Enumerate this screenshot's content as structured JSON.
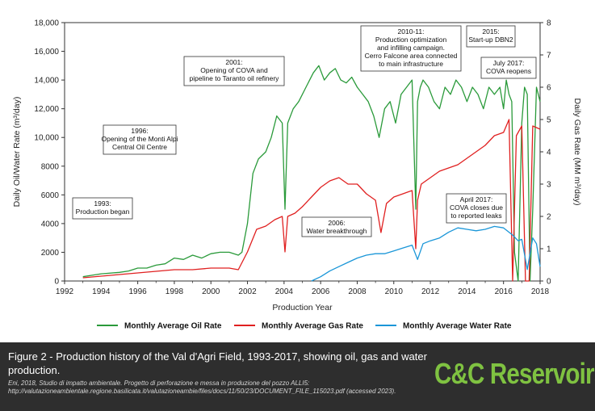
{
  "chart_data": {
    "type": "line",
    "xlabel": "Production Year",
    "ylabel_left": "Daily Oil/Water Rate (m³/day)",
    "ylabel_right": "Daily Gas Rate (MM m³/day)",
    "xlim": [
      1992,
      2018
    ],
    "ylim_left": [
      0,
      18000
    ],
    "ylim_right": [
      0,
      8
    ],
    "x_ticks": [
      "1992",
      "1994",
      "1996",
      "1998",
      "2000",
      "2002",
      "2004",
      "2006",
      "2008",
      "2010",
      "2012",
      "2014",
      "2016",
      "2018"
    ],
    "y_left_ticks": [
      "0",
      "2000",
      "4000",
      "6000",
      "8000",
      "10,000",
      "12,000",
      "14,000",
      "16,000",
      "18,000"
    ],
    "y_right_ticks": [
      "0",
      "1",
      "2",
      "3",
      "4",
      "5",
      "6",
      "7",
      "8"
    ],
    "grid": false,
    "legend_position": "bottom",
    "series": [
      {
        "name": "Monthly Average Oil Rate",
        "axis": "left",
        "color": "#2a9a3a",
        "x": [
          1993.0,
          1993.5,
          1994.0,
          1995.0,
          1995.5,
          1996.0,
          1996.5,
          1997.0,
          1997.5,
          1998.0,
          1998.5,
          1999.0,
          1999.5,
          2000.0,
          2000.5,
          2001.0,
          2001.5,
          2001.7,
          2002.0,
          2002.3,
          2002.6,
          2003.0,
          2003.3,
          2003.6,
          2003.9,
          2004.05,
          2004.2,
          2004.5,
          2004.8,
          2005.2,
          2005.6,
          2005.9,
          2006.2,
          2006.5,
          2006.8,
          2007.1,
          2007.4,
          2007.7,
          2008.0,
          2008.3,
          2008.6,
          2008.9,
          2009.2,
          2009.5,
          2009.8,
          2010.1,
          2010.4,
          2010.7,
          2011.0,
          2011.2,
          2011.3,
          2011.45,
          2011.6,
          2011.9,
          2012.2,
          2012.5,
          2012.8,
          2013.1,
          2013.4,
          2013.7,
          2014.0,
          2014.3,
          2014.6,
          2014.9,
          2015.2,
          2015.5,
          2015.8,
          2016.0,
          2016.15,
          2016.3,
          2016.45,
          2016.6,
          2016.8,
          2017.0,
          2017.15,
          2017.3,
          2017.45,
          2017.6,
          2017.8,
          2018.0
        ],
        "y": [
          300,
          400,
          500,
          600,
          700,
          900,
          900,
          1100,
          1200,
          1600,
          1500,
          1800,
          1600,
          1900,
          2000,
          2000,
          1800,
          2000,
          4000,
          7500,
          8500,
          9000,
          10000,
          11500,
          11000,
          5000,
          11000,
          12000,
          12500,
          13500,
          14500,
          15000,
          14000,
          14500,
          14800,
          14000,
          13800,
          14200,
          13500,
          13000,
          12500,
          11500,
          10000,
          12000,
          12500,
          11000,
          13000,
          13500,
          14000,
          5000,
          12500,
          13500,
          14000,
          13500,
          12500,
          12000,
          13500,
          13000,
          14000,
          13500,
          12500,
          13500,
          13000,
          12000,
          13500,
          13000,
          13500,
          12000,
          14000,
          13000,
          12500,
          2000,
          0,
          11000,
          13500,
          13000,
          0,
          5000,
          13500,
          12500
        ]
      },
      {
        "name": "Monthly Average Gas Rate",
        "axis": "right",
        "color": "#e02020",
        "x": [
          1993.0,
          1994.0,
          1995.0,
          1996.0,
          1997.0,
          1998.0,
          1999.0,
          2000.0,
          2001.0,
          2001.5,
          2002.0,
          2002.5,
          2003.0,
          2003.5,
          2003.9,
          2004.05,
          2004.2,
          2004.6,
          2005.0,
          2005.5,
          2006.0,
          2006.5,
          2007.0,
          2007.5,
          2008.0,
          2008.5,
          2009.0,
          2009.3,
          2009.6,
          2010.0,
          2010.5,
          2011.0,
          2011.2,
          2011.3,
          2011.5,
          2012.0,
          2012.5,
          2013.0,
          2013.5,
          2014.0,
          2014.5,
          2015.0,
          2015.5,
          2016.0,
          2016.3,
          2016.5,
          2016.7,
          2017.0,
          2017.2,
          2017.4,
          2017.6,
          2018.0
        ],
        "y": [
          0.1,
          0.15,
          0.2,
          0.25,
          0.3,
          0.35,
          0.35,
          0.4,
          0.4,
          0.35,
          0.9,
          1.6,
          1.7,
          1.9,
          2.0,
          0.9,
          2.0,
          2.1,
          2.3,
          2.6,
          2.9,
          3.1,
          3.2,
          3.0,
          3.0,
          2.7,
          2.5,
          1.5,
          2.4,
          2.6,
          2.7,
          2.8,
          1.0,
          2.5,
          3.0,
          3.2,
          3.4,
          3.5,
          3.6,
          3.8,
          4.0,
          4.2,
          4.5,
          4.6,
          5.0,
          0,
          4.5,
          4.8,
          0,
          0,
          4.8,
          4.7
        ]
      },
      {
        "name": "Monthly Average Water Rate",
        "axis": "left",
        "color": "#1a96d8",
        "x": [
          2005.5,
          2006.0,
          2006.5,
          2007.0,
          2007.5,
          2008.0,
          2008.5,
          2009.0,
          2009.5,
          2010.0,
          2010.5,
          2011.0,
          2011.3,
          2011.6,
          2012.0,
          2012.5,
          2013.0,
          2013.5,
          2014.0,
          2014.5,
          2015.0,
          2015.5,
          2016.0,
          2016.5,
          2016.8,
          2017.0,
          2017.3,
          2017.6,
          2017.8,
          2018.0
        ],
        "y": [
          0,
          300,
          700,
          1000,
          1300,
          1600,
          1800,
          1900,
          1900,
          2100,
          2300,
          2500,
          1500,
          2600,
          2800,
          3000,
          3400,
          3700,
          3600,
          3500,
          3600,
          3800,
          3700,
          3200,
          2800,
          2900,
          800,
          3000,
          2600,
          1000
        ]
      }
    ],
    "annotations": [
      {
        "lines": [
          "1993:",
          "Production began"
        ]
      },
      {
        "lines": [
          "1996:",
          "Opening of the Monti Alpi",
          "Central Oil Centre"
        ]
      },
      {
        "lines": [
          "2001:",
          "Opening of COVA and",
          "pipeline to Taranto oil refinery"
        ]
      },
      {
        "lines": [
          "2006:",
          "Water breakthrough"
        ]
      },
      {
        "lines": [
          "2010-11:",
          "Production optimization",
          "and infilling campaign.",
          "Cerro Falcone area connected",
          "to main infrastructure"
        ]
      },
      {
        "lines": [
          "2015:",
          "Start-up DBN2"
        ]
      },
      {
        "lines": [
          "July 2017:",
          "COVA reopens"
        ]
      },
      {
        "lines": [
          "April 2017:",
          "COVA closes due",
          "to reported leaks"
        ]
      }
    ]
  },
  "caption": {
    "title": "Figure 2 - Production history of the Val d'Agri Field, 1993-2017, showing oil, gas and water production.",
    "source": "Eni, 2018, Studio di impatto ambientale. Progetto di perforazione e messa in produzione del pozzo ALLI5: http://valutazioneambientale.regione.basilicata.it/valutazioneambie/files/docs/11/50/23/DOCUMENT_FILE_115023.pdf (accessed 2023)."
  },
  "logo": {
    "text": "C&C Reservoirs"
  }
}
